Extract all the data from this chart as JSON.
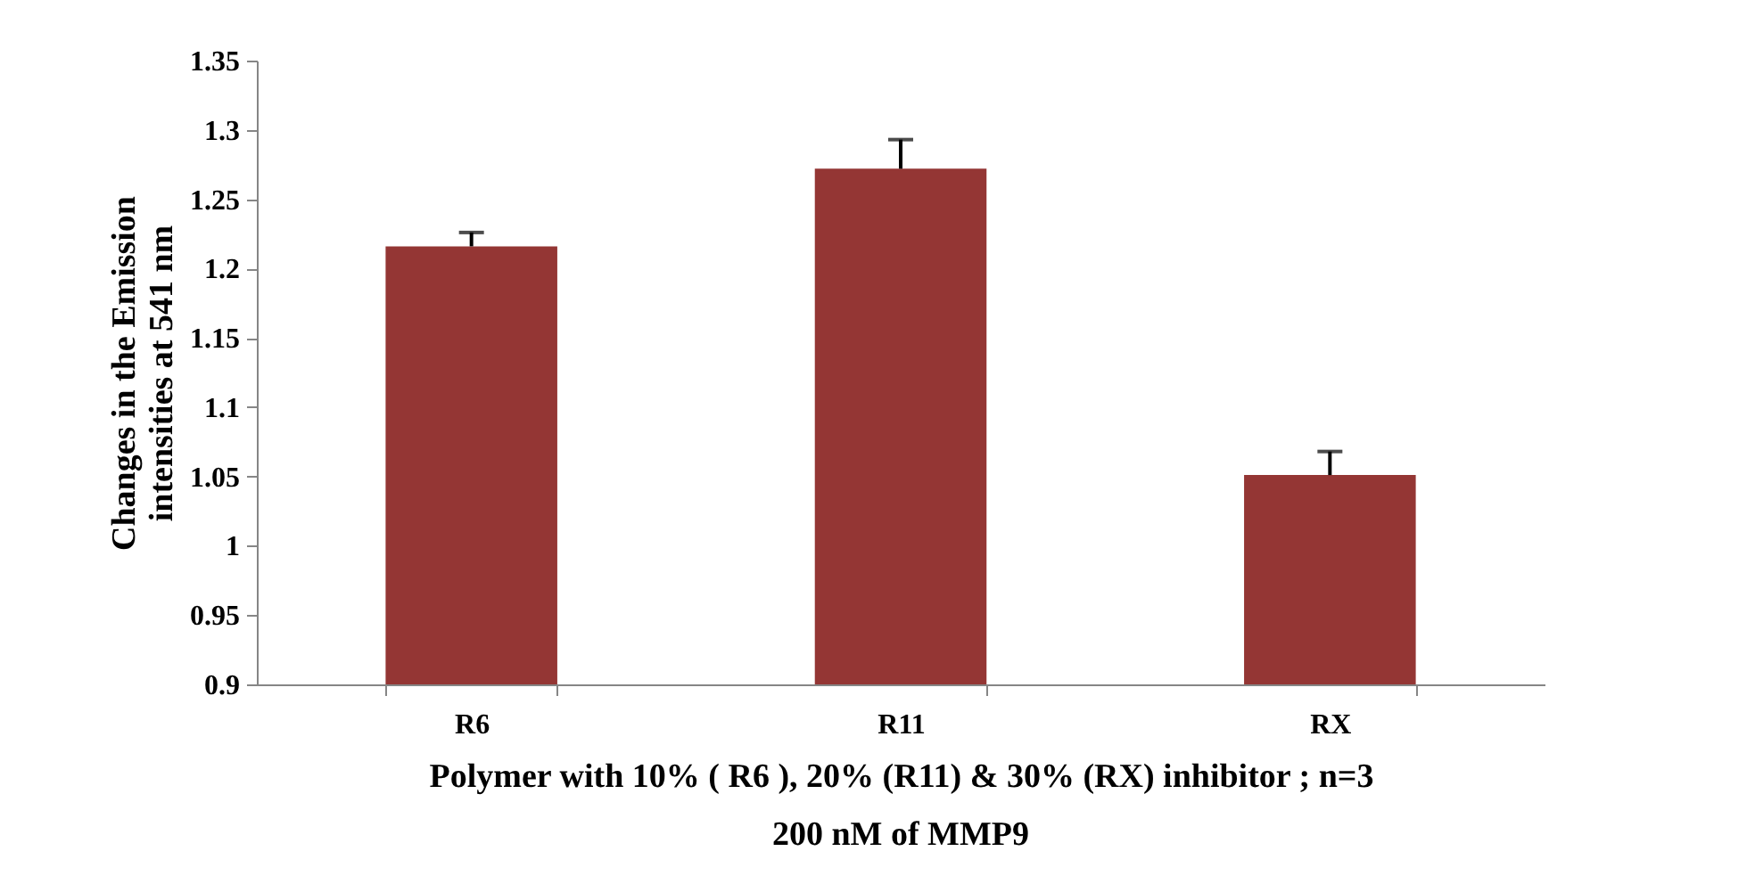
{
  "chart_data": {
    "type": "bar",
    "ylabel": "Changes in the Emission\nintensities at 541 nm",
    "xlabel": "Polymer with 10% ( R6 ), 20% (R11) & 30% (RX) inhibitor ; n=3",
    "annotations": [
      "200 nM of MMP9"
    ],
    "categories": [
      "R6",
      "R11",
      "RX"
    ],
    "values": [
      1.216,
      1.272,
      1.051
    ],
    "errors": [
      [
        1.216,
        1.226
      ],
      [
        1.272,
        1.293
      ],
      [
        1.051,
        1.068
      ]
    ],
    "color": "#943634",
    "ylim": [
      0.9,
      1.35
    ],
    "yticks": [
      0.9,
      0.95,
      1,
      1.05,
      1.1,
      1.15,
      1.2,
      1.25,
      1.3,
      1.35
    ],
    "grid": false
  }
}
